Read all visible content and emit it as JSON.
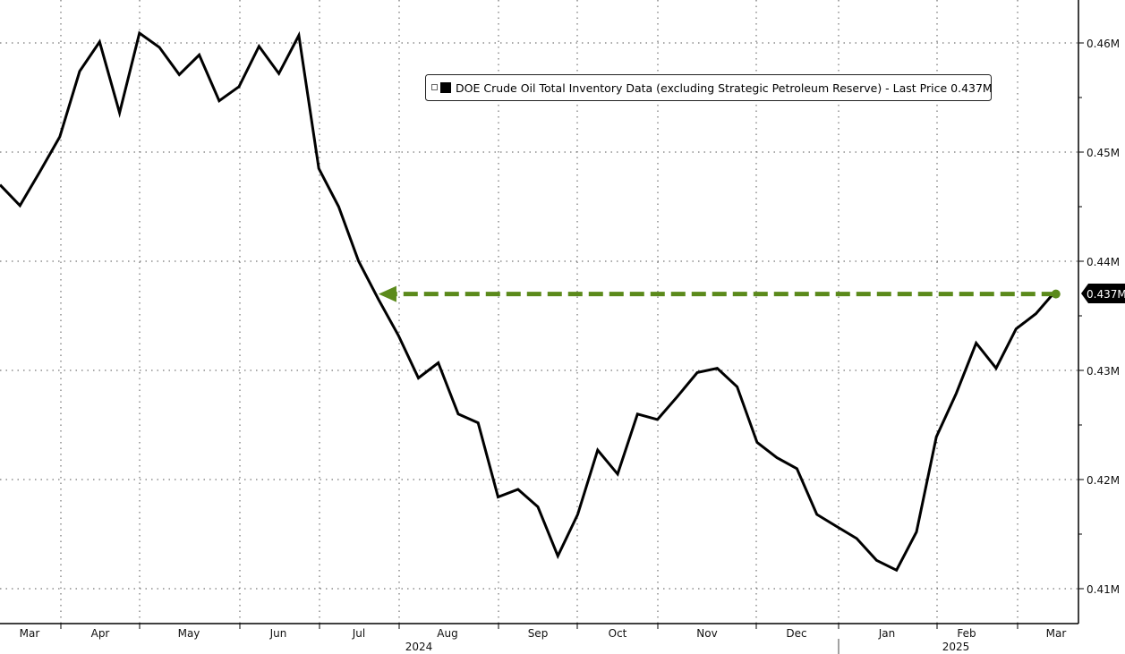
{
  "chart_data": {
    "type": "line",
    "title": "",
    "xlabel": "",
    "ylabel": "",
    "legend": {
      "text": "DOE Crude Oil Total Inventory Data (excluding Strategic Petroleum Reserve) - Last Price 0.437M",
      "placement": "top-center"
    },
    "last_price_label": "0.437M",
    "last_price": 0.437,
    "ylim": [
      0.4065,
      0.464
    ],
    "yticks": [
      0.41,
      0.42,
      0.43,
      0.44,
      0.45,
      0.46
    ],
    "ytick_labels": [
      "0.41M",
      "0.42M",
      "0.43M",
      "0.44M",
      "0.45M",
      "0.46M"
    ],
    "x_month_labels": [
      "Mar",
      "Apr",
      "May",
      "Jun",
      "Jul",
      "Aug",
      "Sep",
      "Oct",
      "Nov",
      "Dec",
      "Jan",
      "Feb",
      "Mar"
    ],
    "x_year_labels": [
      "2024",
      "2025"
    ],
    "grid": true,
    "frequency": "weekly",
    "series": [
      {
        "color": "#000000",
        "values": [
          0.447,
          0.4451,
          0.4482,
          0.4514,
          0.4574,
          0.4601,
          0.4536,
          0.4609,
          0.4596,
          0.4571,
          0.4589,
          0.4547,
          0.456,
          0.4597,
          0.4572,
          0.4607,
          0.4485,
          0.445,
          0.44,
          0.4365,
          0.4332,
          0.4293,
          0.4307,
          0.426,
          0.4252,
          0.4184,
          0.4191,
          0.4175,
          0.413,
          0.4168,
          0.4227,
          0.4205,
          0.426,
          0.4255,
          0.4276,
          0.4298,
          0.4302,
          0.4285,
          0.4234,
          0.422,
          0.421,
          0.4168,
          0.4157,
          0.4146,
          0.4126,
          0.4117,
          0.4152,
          0.4239,
          0.4279,
          0.4325,
          0.4302,
          0.4338,
          0.4352,
          0.4373
        ]
      }
    ],
    "annotation": {
      "type": "dashed-arrow",
      "color": "#5b8a1b",
      "y": 0.437,
      "from_week_index": 53,
      "to_week_index": 19
    }
  }
}
